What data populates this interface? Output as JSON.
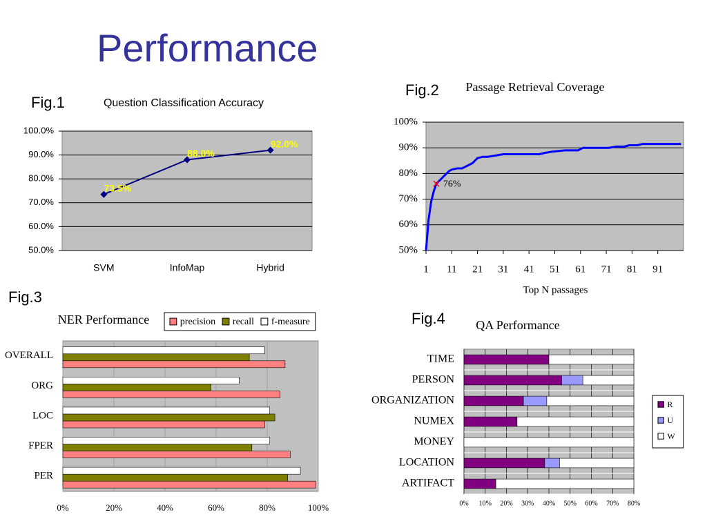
{
  "title": "Performance",
  "chart_data": [
    {
      "figure": "Fig.1",
      "type": "line",
      "title": "Question Classification Accuracy",
      "categories": [
        "SVM",
        "InfoMap",
        "Hybrid"
      ],
      "values": [
        73.5,
        88.0,
        92.0
      ],
      "value_labels": [
        "73.5%",
        "88.0%",
        "92.0%"
      ],
      "color": "#000080",
      "label_color": "#ffff00",
      "plot_color": "#c0c0c0",
      "ylim": [
        50,
        100
      ],
      "yticks": [
        {
          "value": 50,
          "label": "50.0%"
        },
        {
          "value": 60,
          "label": "60.0%"
        },
        {
          "value": 70,
          "label": "70.0%"
        },
        {
          "value": 80,
          "label": "80.0%"
        },
        {
          "value": 90,
          "label": "90.0%"
        },
        {
          "value": 100,
          "label": "100.0%"
        }
      ],
      "grid": true
    },
    {
      "figure": "Fig.2",
      "type": "line",
      "title": "Passage Retrieval Coverage",
      "xlabel": "Top N passages",
      "x": [
        1,
        2,
        3,
        4,
        5,
        6,
        7,
        8,
        9,
        10,
        11,
        13,
        15,
        17,
        19,
        21,
        23,
        25,
        28,
        31,
        35,
        40,
        45,
        47,
        50,
        55,
        60,
        62,
        65,
        70,
        72,
        75,
        78,
        80,
        83,
        85,
        90,
        95,
        100
      ],
      "values": [
        50,
        62,
        69,
        73,
        76,
        77,
        78,
        79,
        80,
        81,
        81.5,
        82,
        82,
        83,
        84,
        86,
        86.5,
        86.5,
        87,
        87.5,
        87.5,
        87.5,
        87.5,
        88,
        88.5,
        89,
        89,
        90,
        90,
        90,
        90,
        90.5,
        90.5,
        91,
        91,
        91.5,
        91.5,
        91.5,
        91.5
      ],
      "color": "#0000ff",
      "plot_color": "#c0c0c0",
      "xlim": [
        1,
        101
      ],
      "xticks": [
        1,
        11,
        21,
        31,
        41,
        51,
        61,
        71,
        81,
        91
      ],
      "ylim": [
        50,
        100
      ],
      "yticks": [
        {
          "value": 50,
          "label": "50%"
        },
        {
          "value": 60,
          "label": "60%"
        },
        {
          "value": 70,
          "label": "70%"
        },
        {
          "value": 80,
          "label": "80%"
        },
        {
          "value": 90,
          "label": "90%"
        },
        {
          "value": 100,
          "label": "100%"
        }
      ],
      "grid": true,
      "annotations": [
        {
          "x": 5,
          "y": 76,
          "label": "76%",
          "color": "#ff0000"
        }
      ]
    },
    {
      "figure": "Fig.3",
      "type": "bar",
      "orientation": "horizontal",
      "title": "NER Performance",
      "categories": [
        "OVERALL",
        "ORG",
        "LOC",
        "FPER",
        "PER"
      ],
      "series": [
        {
          "name": "precision",
          "color": "#ff8080",
          "values": [
            87,
            85,
            79,
            89,
            99
          ]
        },
        {
          "name": "recall",
          "color": "#808000",
          "values": [
            73,
            58,
            83,
            74,
            88
          ]
        },
        {
          "name": "f-measure",
          "color": "#ffffff",
          "values": [
            79,
            69,
            81,
            81,
            93
          ]
        }
      ],
      "plot_color": "#c0c0c0",
      "xlim": [
        0,
        100
      ],
      "xticks": [
        {
          "value": 0,
          "label": "0%"
        },
        {
          "value": 20,
          "label": "20%"
        },
        {
          "value": 40,
          "label": "40%"
        },
        {
          "value": 60,
          "label": "60%"
        },
        {
          "value": 80,
          "label": "80%"
        },
        {
          "value": 100,
          "label": "100%"
        }
      ],
      "grid": true,
      "legend": "top"
    },
    {
      "figure": "Fig.4",
      "type": "bar",
      "orientation": "horizontal",
      "stacked": true,
      "title": "QA Performance",
      "categories": [
        "TIME",
        "PERSON",
        "ORGANIZATION",
        "NUMEX",
        "MONEY",
        "LOCATION",
        "ARTIFACT"
      ],
      "series": [
        {
          "name": "R",
          "color": "#800080",
          "values": [
            40,
            46,
            28,
            25,
            0,
            38,
            15
          ]
        },
        {
          "name": "U",
          "color": "#9999ff",
          "values": [
            0,
            10,
            11,
            0,
            0,
            7,
            0
          ]
        },
        {
          "name": "W",
          "color": "#ffffff",
          "values": [
            40,
            24,
            41,
            55,
            80,
            35,
            65
          ]
        }
      ],
      "plot_color": "#c0c0c0",
      "xlim": [
        0,
        80
      ],
      "xticks": [
        {
          "value": 0,
          "label": "0%"
        },
        {
          "value": 10,
          "label": "10%"
        },
        {
          "value": 20,
          "label": "20%"
        },
        {
          "value": 30,
          "label": "30%"
        },
        {
          "value": 40,
          "label": "40%"
        },
        {
          "value": 50,
          "label": "50%"
        },
        {
          "value": 60,
          "label": "60%"
        },
        {
          "value": 70,
          "label": "70%"
        },
        {
          "value": 80,
          "label": "80%"
        }
      ],
      "grid": true,
      "legend": "right"
    }
  ]
}
